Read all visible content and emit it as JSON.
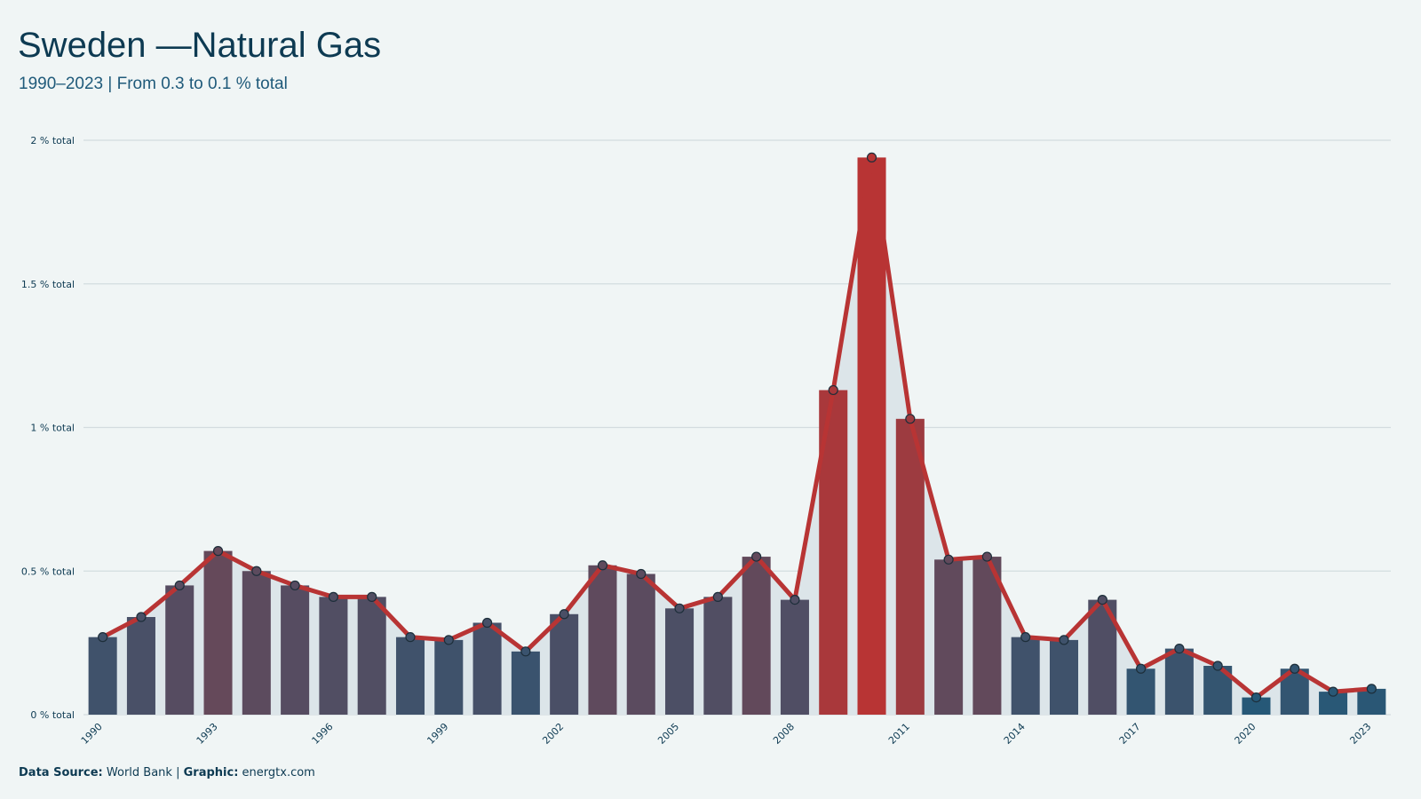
{
  "chart_data": {
    "type": "bar-line",
    "title": "Sweden —Natural Gas",
    "subtitle": "1990–2023 | From 0.3 to 0.1 % total",
    "x": [
      1990,
      1991,
      1992,
      1993,
      1994,
      1995,
      1996,
      1997,
      1998,
      1999,
      2000,
      2001,
      2002,
      2003,
      2004,
      2005,
      2006,
      2007,
      2008,
      2009,
      2010,
      2011,
      2012,
      2013,
      2014,
      2015,
      2016,
      2017,
      2018,
      2019,
      2020,
      2021,
      2022,
      2023
    ],
    "values": [
      0.27,
      0.34,
      0.45,
      0.57,
      0.5,
      0.45,
      0.41,
      0.41,
      0.27,
      0.26,
      0.32,
      0.22,
      0.35,
      0.52,
      0.49,
      0.37,
      0.41,
      0.55,
      0.4,
      1.13,
      1.94,
      1.03,
      0.54,
      0.55,
      0.27,
      0.26,
      0.4,
      0.16,
      0.23,
      0.17,
      0.06,
      0.16,
      0.08,
      0.09
    ],
    "xlim": [
      1989.5,
      2023.5
    ],
    "xticks": [
      1990,
      1993,
      1996,
      1999,
      2002,
      2005,
      2008,
      2011,
      2014,
      2017,
      2020,
      2023
    ],
    "ylim": [
      0,
      2
    ],
    "yticks": [
      {
        "value": 0,
        "label": "0 % total"
      },
      {
        "value": 0.5,
        "label": "0.5 % total"
      },
      {
        "value": 1,
        "label": "1 % total"
      },
      {
        "value": 1.5,
        "label": "1.5 % total"
      },
      {
        "value": 2,
        "label": "2 % total"
      }
    ],
    "grid": true,
    "bar_colors": [
      "#1f5a7a",
      "#b83434"
    ],
    "line_color": "#b83434",
    "area_color": "#dce5e9",
    "source_label": "Data Source:",
    "source": "World Bank",
    "footer_separator": "|",
    "graphic_label": "Graphic:",
    "graphic": "energtx.com"
  }
}
